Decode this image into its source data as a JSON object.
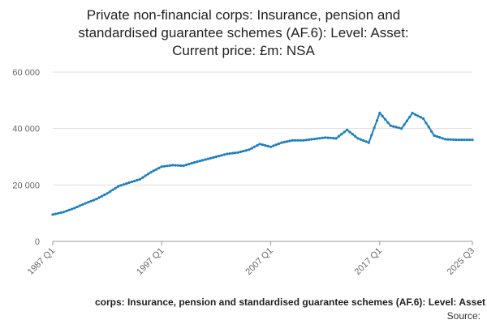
{
  "title_lines": [
    "Private non-financial corps: Insurance, pension and",
    "standardised guarantee schemes (AF.6): Level: Asset:",
    "Current price: £m: NSA"
  ],
  "footer": {
    "series_label": "corps: Insurance, pension and standardised guarantee schemes (AF.6): Level: Asset",
    "source_label": "Source:"
  },
  "colors": {
    "line": "#1f7fbd",
    "grid": "#dddddd",
    "axis": "#999999"
  },
  "chart_data": {
    "type": "line",
    "title": "Private non-financial corps: Insurance, pension and standardised guarantee schemes (AF.6): Level: Asset: Current price: £m: NSA",
    "xlabel": "",
    "ylabel": "",
    "ylim": [
      0,
      60000
    ],
    "yticks": [
      0,
      20000,
      40000,
      60000
    ],
    "ytick_labels": [
      "0",
      "20 000",
      "40 000",
      "60 000"
    ],
    "xtick_labels": [
      "1987 Q1",
      "1997 Q1",
      "2007 Q1",
      "2017 Q1",
      "2025 Q3"
    ],
    "x_start": "1987 Q1",
    "x_end": "2025 Q3",
    "grid": true,
    "series": [
      {
        "name": "corps: Insurance, pension and standardised guarantee schemes (AF.6): Level: Asset",
        "annual_q1_values": [
          [
            "1987",
            9500
          ],
          [
            "1988",
            10400
          ],
          [
            "1989",
            11800
          ],
          [
            "1990",
            13500
          ],
          [
            "1991",
            15000
          ],
          [
            "1992",
            17000
          ],
          [
            "1993",
            19500
          ],
          [
            "1994",
            20800
          ],
          [
            "1995",
            22000
          ],
          [
            "1996",
            24500
          ],
          [
            "1997",
            26500
          ],
          [
            "1998",
            27000
          ],
          [
            "1999",
            26800
          ],
          [
            "2000",
            28000
          ],
          [
            "2001",
            29000
          ],
          [
            "2002",
            30000
          ],
          [
            "2003",
            31000
          ],
          [
            "2004",
            31500
          ],
          [
            "2005",
            32500
          ],
          [
            "2006",
            34500
          ],
          [
            "2007",
            33500
          ],
          [
            "2008",
            35000
          ],
          [
            "2009",
            35800
          ],
          [
            "2010",
            35800
          ],
          [
            "2011",
            36300
          ],
          [
            "2012",
            36800
          ],
          [
            "2013",
            36500
          ],
          [
            "2014",
            39500
          ],
          [
            "2015",
            36500
          ],
          [
            "2016",
            35000
          ],
          [
            "2017",
            45500
          ],
          [
            "2018",
            41000
          ],
          [
            "2019",
            40000
          ],
          [
            "2020",
            45500
          ],
          [
            "2021",
            43500
          ],
          [
            "2022",
            37500
          ],
          [
            "2023",
            36200
          ],
          [
            "2024",
            36000
          ],
          [
            "2025",
            36000
          ]
        ]
      }
    ]
  }
}
